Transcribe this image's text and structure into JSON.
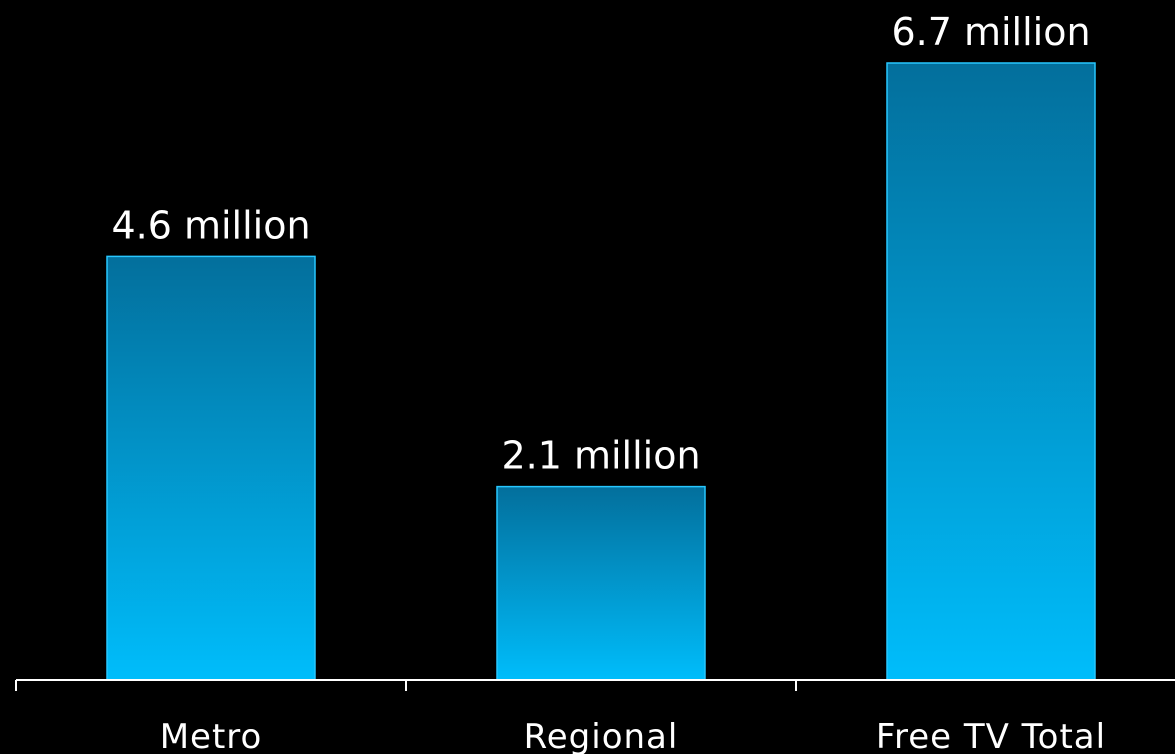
{
  "colors": {
    "background": "#000000",
    "bar_top": "#036f9c",
    "bar_bottom": "#00bdfb",
    "bar_border": "#27c7ff",
    "text": "#ffffff",
    "axis": "#ffffff"
  },
  "chart_data": {
    "type": "bar",
    "title": "",
    "xlabel": "",
    "ylabel": "",
    "categories": [
      "Metro",
      "Regional",
      "Free TV Total"
    ],
    "values": [
      4.6,
      2.1,
      6.7
    ],
    "data_labels": [
      "4.6 million",
      "2.1 million",
      "6.7 million"
    ],
    "ylim": [
      0,
      7.3
    ],
    "grid": false,
    "legend": "none"
  }
}
